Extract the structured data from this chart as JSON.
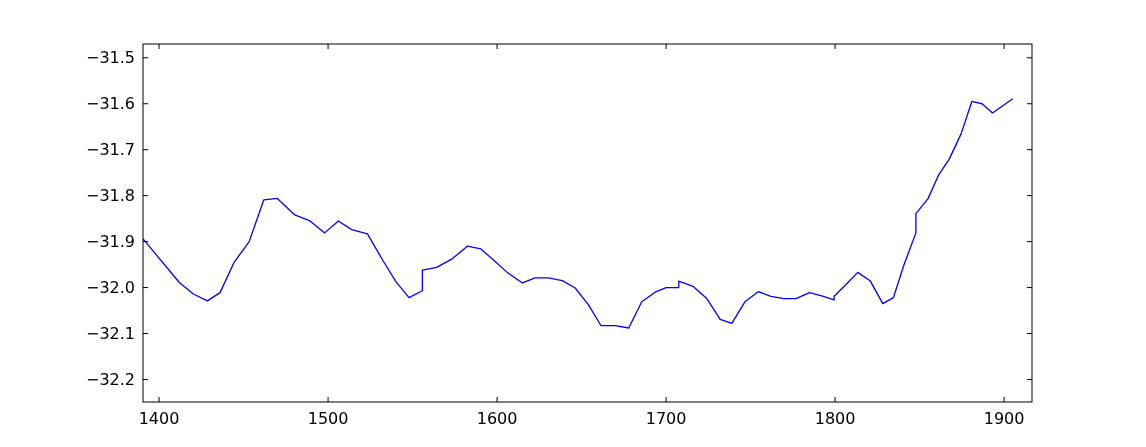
{
  "chart_data": {
    "type": "line",
    "xlim": [
      1390.5,
      1916.5
    ],
    "ylim": [
      -32.249,
      -31.47
    ],
    "xticks": [
      1400,
      1500,
      1600,
      1700,
      1800,
      1900
    ],
    "yticks": [
      {
        "value": -31.5,
        "label": "−31.5"
      },
      {
        "value": -31.6,
        "label": "−31.6"
      },
      {
        "value": -31.7,
        "label": "−31.7"
      },
      {
        "value": -31.8,
        "label": "−31.8"
      },
      {
        "value": -31.9,
        "label": "−31.9"
      },
      {
        "value": -32.0,
        "label": "−32.0"
      },
      {
        "value": -32.1,
        "label": "−32.1"
      },
      {
        "value": -32.2,
        "label": "−32.2"
      }
    ],
    "grid": false,
    "marker": "none",
    "line_style": "solid",
    "series": [
      {
        "color": "#0000ff",
        "x": [
          1390.5,
          1412.0,
          1420.3,
          1428.6,
          1436.1,
          1444.4,
          1453.3,
          1462.0,
          1470.0,
          1480.3,
          1489.3,
          1498.0,
          1506.1,
          1514.0,
          1523.3,
          1532.1,
          1540.1,
          1547.9,
          1555.8,
          1555.8,
          1564.3,
          1573.6,
          1582.4,
          1590.4,
          1598.2,
          1606.3,
          1615.0,
          1622.5,
          1630.4,
          1638.6,
          1646.2,
          1654.0,
          1661.5,
          1669.8,
          1677.9,
          1685.6,
          1693.5,
          1700.0,
          1707.5,
          1707.5,
          1716.2,
          1724.1,
          1732.0,
          1738.9,
          1746.6,
          1754.5,
          1762.0,
          1769.8,
          1776.9,
          1784.8,
          1792.1,
          1799.4,
          1799.4,
          1806.3,
          1813.4,
          1820.7,
          1828.2,
          1834.5,
          1840.4,
          1847.8,
          1847.8,
          1854.9,
          1861.1,
          1867.6,
          1874.6,
          1880.9,
          1887.0,
          1893.1,
          1905.1
        ],
        "values": [
          -31.894,
          -31.989,
          -32.014,
          -32.029,
          -32.011,
          -31.945,
          -31.9,
          -31.809,
          -31.806,
          -31.842,
          -31.855,
          -31.881,
          -31.855,
          -31.874,
          -31.883,
          -31.939,
          -31.987,
          -32.022,
          -32.007,
          -31.962,
          -31.956,
          -31.937,
          -31.91,
          -31.916,
          -31.941,
          -31.968,
          -31.99,
          -31.979,
          -31.979,
          -31.985,
          -32.001,
          -32.037,
          -32.083,
          -32.083,
          -32.088,
          -32.031,
          -32.01,
          -32.0,
          -32.0,
          -31.986,
          -31.998,
          -32.024,
          -32.069,
          -32.078,
          -32.031,
          -32.009,
          -32.019,
          -32.024,
          -32.024,
          -32.011,
          -32.018,
          -32.027,
          -32.019,
          -31.994,
          -31.967,
          -31.985,
          -32.035,
          -32.022,
          -31.954,
          -31.881,
          -31.839,
          -31.807,
          -31.756,
          -31.72,
          -31.665,
          -31.595,
          -31.6,
          -31.62,
          -31.589
        ]
      }
    ]
  }
}
